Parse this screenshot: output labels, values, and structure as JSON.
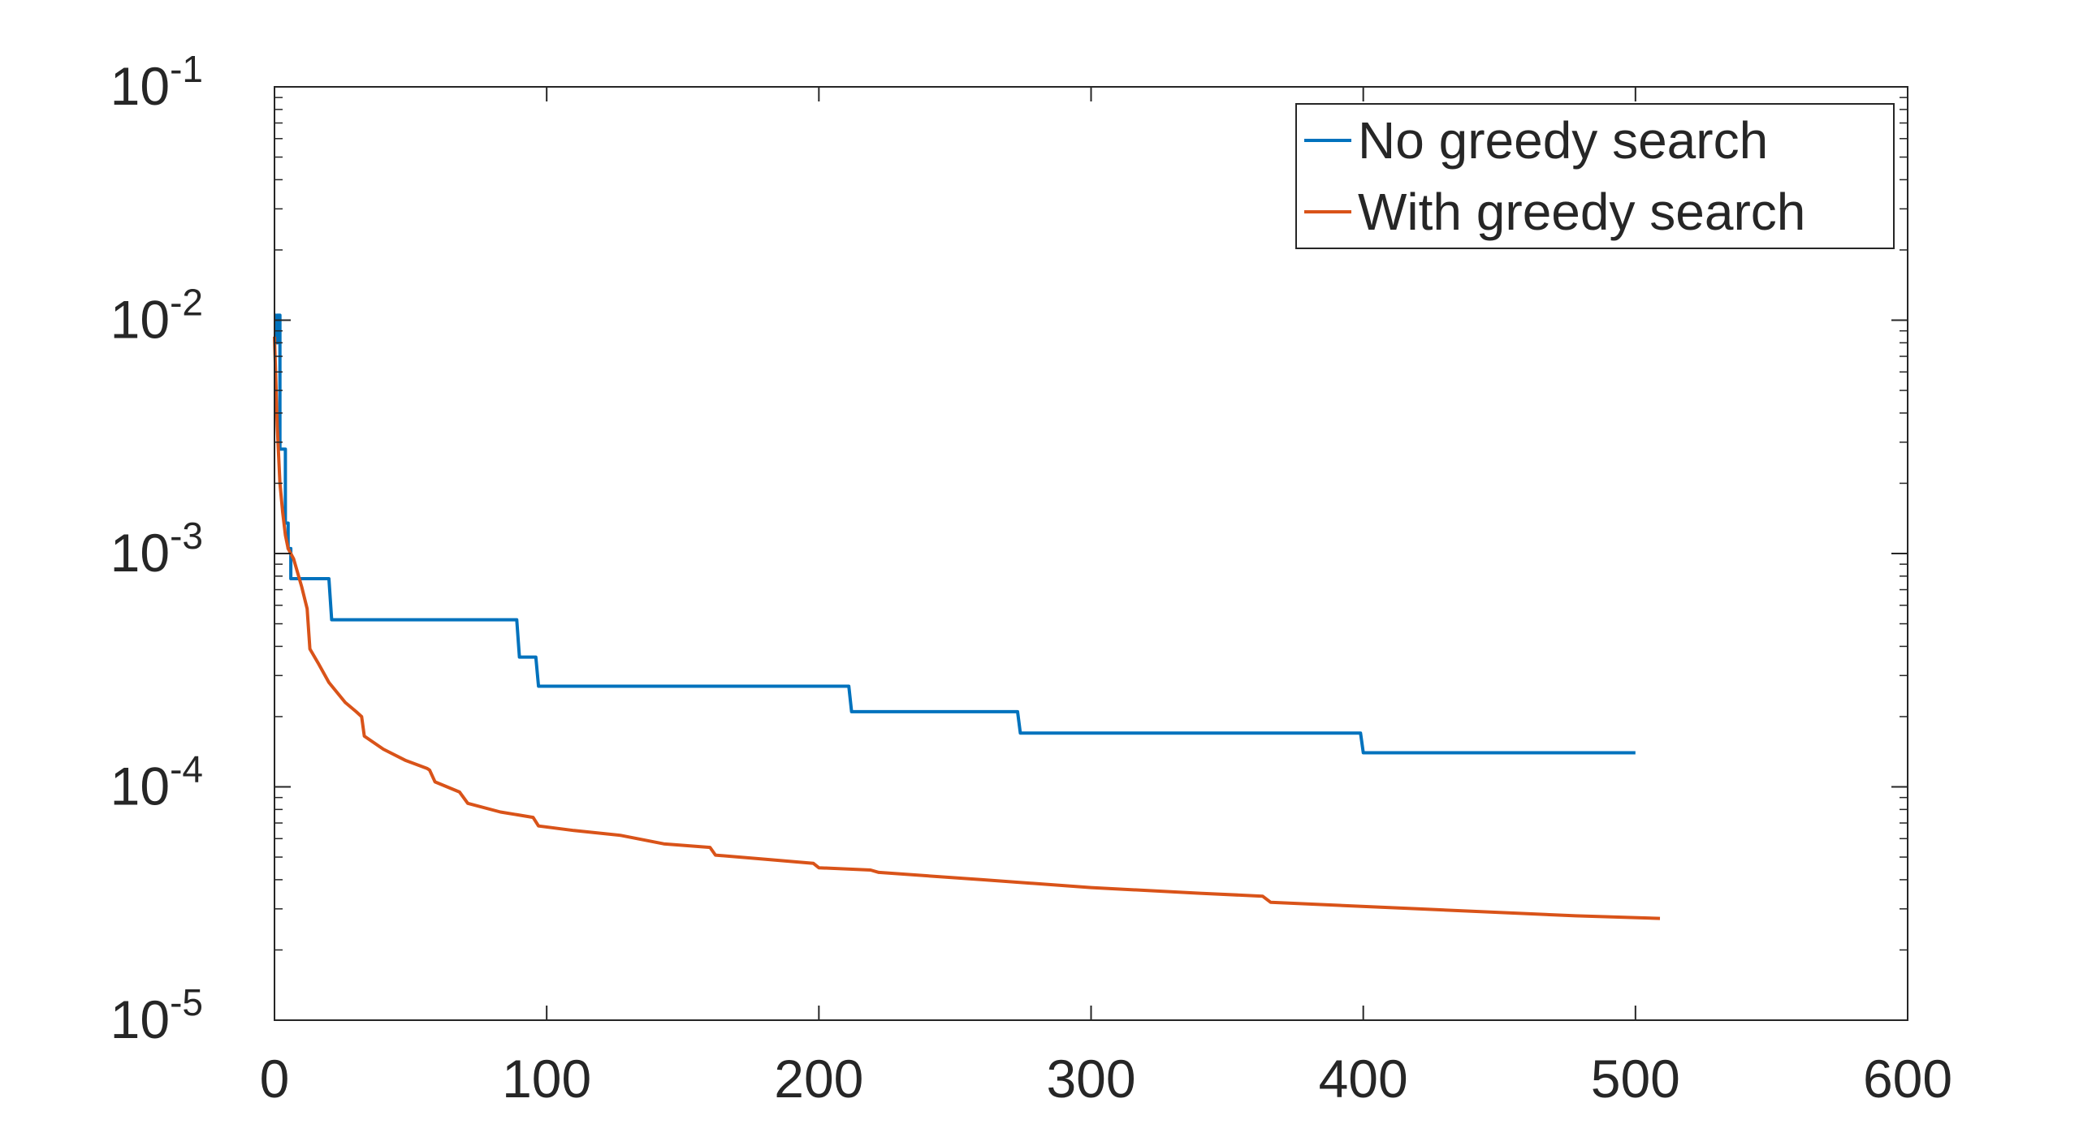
{
  "chart_data": {
    "type": "line",
    "title": "",
    "xlabel": "",
    "ylabel": "",
    "xlim": [
      0,
      600
    ],
    "ylim": [
      1e-05,
      0.1
    ],
    "yscale": "log",
    "xticks": [
      0,
      100,
      200,
      300,
      400,
      500,
      600
    ],
    "xtick_labels": [
      "0",
      "100",
      "200",
      "300",
      "400",
      "500",
      "600"
    ],
    "yticks": [
      {
        "value": 1e-05,
        "base": "10",
        "exp": "-5"
      },
      {
        "value": 0.0001,
        "base": "10",
        "exp": "-4"
      },
      {
        "value": 0.001,
        "base": "10",
        "exp": "-3"
      },
      {
        "value": 0.01,
        "base": "10",
        "exp": "-2"
      },
      {
        "value": 0.1,
        "base": "10",
        "exp": "-1"
      }
    ],
    "grid": false,
    "legend_position": "top-right",
    "series": [
      {
        "name": "No greedy search",
        "color": "#0072BD",
        "points": [
          [
            0,
            0.0105
          ],
          [
            0.5,
            0.0105
          ],
          [
            0.5,
            0.008
          ],
          [
            1,
            0.008
          ],
          [
            1,
            0.0105
          ],
          [
            2,
            0.0105
          ],
          [
            2,
            0.0028
          ],
          [
            3,
            0.0028
          ],
          [
            3,
            0.0028
          ],
          [
            4,
            0.0028
          ],
          [
            4,
            0.00135
          ],
          [
            5,
            0.00135
          ],
          [
            5,
            0.00105
          ],
          [
            6,
            0.00105
          ],
          [
            6,
            0.00078
          ],
          [
            20,
            0.00078
          ],
          [
            20,
            0.00078
          ],
          [
            21,
            0.00052
          ],
          [
            89,
            0.00052
          ],
          [
            90,
            0.00036
          ],
          [
            96,
            0.00036
          ],
          [
            97,
            0.00027
          ],
          [
            211,
            0.00027
          ],
          [
            212,
            0.00021
          ],
          [
            273,
            0.00021
          ],
          [
            274,
            0.00017
          ],
          [
            399,
            0.00017
          ],
          [
            400,
            0.00014
          ],
          [
            500,
            0.00014
          ]
        ]
      },
      {
        "name": "With greedy search",
        "color": "#D95319",
        "points": [
          [
            0,
            0.0085
          ],
          [
            1,
            0.0035
          ],
          [
            2,
            0.002
          ],
          [
            3,
            0.0015
          ],
          [
            4,
            0.0012
          ],
          [
            5,
            0.00105
          ],
          [
            7,
            0.00095
          ],
          [
            10,
            0.00072
          ],
          [
            12,
            0.00058
          ],
          [
            13,
            0.00039
          ],
          [
            16,
            0.00034
          ],
          [
            20,
            0.00028
          ],
          [
            26,
            0.00023
          ],
          [
            30,
            0.00021
          ],
          [
            32,
            0.0002
          ],
          [
            33,
            0.000165
          ],
          [
            40,
            0.000145
          ],
          [
            48,
            0.00013
          ],
          [
            56,
            0.00012
          ],
          [
            57,
            0.000118
          ],
          [
            59,
            0.000105
          ],
          [
            68,
            9.5e-05
          ],
          [
            71,
            8.5e-05
          ],
          [
            83,
            7.8e-05
          ],
          [
            95,
            7.4e-05
          ],
          [
            97,
            6.8e-05
          ],
          [
            110,
            6.5e-05
          ],
          [
            127,
            6.2e-05
          ],
          [
            143,
            5.7e-05
          ],
          [
            160,
            5.5e-05
          ],
          [
            162,
            5.1e-05
          ],
          [
            180,
            4.9e-05
          ],
          [
            198,
            4.7e-05
          ],
          [
            200,
            4.5e-05
          ],
          [
            219,
            4.4e-05
          ],
          [
            222,
            4.3e-05
          ],
          [
            260,
            4e-05
          ],
          [
            300,
            3.7e-05
          ],
          [
            340,
            3.5e-05
          ],
          [
            363,
            3.4e-05
          ],
          [
            366,
            3.2e-05
          ],
          [
            420,
            3e-05
          ],
          [
            478,
            2.8e-05
          ],
          [
            509,
            2.73e-05
          ]
        ]
      }
    ]
  }
}
